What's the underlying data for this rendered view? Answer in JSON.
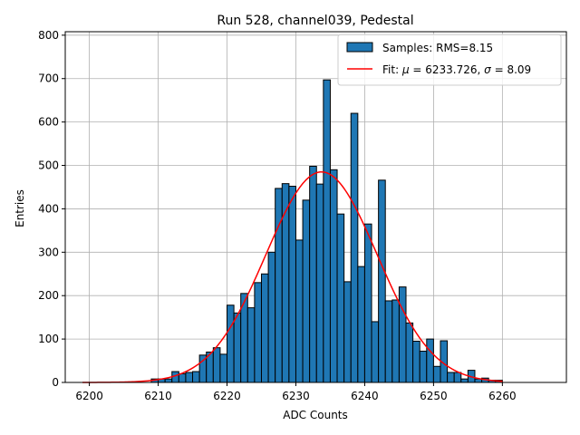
{
  "chart_data": {
    "type": "bar",
    "title": "Run 528, channel039, Pedestal",
    "xlabel": "ADC Counts",
    "ylabel": "Entries",
    "xlim": [
      6196.5,
      6269.3
    ],
    "ylim": [
      0,
      808
    ],
    "xticks": [
      6200,
      6210,
      6220,
      6230,
      6240,
      6250,
      6260
    ],
    "yticks": [
      0,
      100,
      200,
      300,
      400,
      500,
      600,
      700,
      800
    ],
    "grid": true,
    "legend_position": "upper right",
    "bin_width": 1,
    "bin_starts": [
      6209,
      6210,
      6211,
      6212,
      6213,
      6214,
      6215,
      6216,
      6217,
      6218,
      6219,
      6220,
      6221,
      6222,
      6223,
      6224,
      6225,
      6226,
      6227,
      6228,
      6229,
      6230,
      6231,
      6232,
      6233,
      6234,
      6235,
      6236,
      6237,
      6238,
      6239,
      6240,
      6241,
      6242,
      6243,
      6244,
      6245,
      6246,
      6247,
      6248,
      6249,
      6250,
      6251,
      6252,
      6253,
      6254,
      6255,
      6256,
      6257,
      6258,
      6259
    ],
    "series": [
      {
        "name": "Samples: RMS=8.15",
        "kind": "histogram",
        "color": "#1f77b4",
        "edgecolor": "#000000",
        "values": [
          8,
          8,
          8,
          25,
          20,
          23,
          25,
          63,
          70,
          80,
          65,
          178,
          160,
          205,
          172,
          230,
          250,
          300,
          447,
          458,
          452,
          328,
          420,
          498,
          457,
          697,
          490,
          388,
          232,
          620,
          267,
          365,
          140,
          466,
          188,
          190,
          220,
          137,
          95,
          72,
          100,
          37,
          96,
          23,
          23,
          8,
          28,
          8,
          10,
          5,
          5
        ]
      },
      {
        "name": "Fit: μ = 6233.726, σ = 8.09",
        "kind": "line",
        "color": "#ff0000",
        "mu": 6233.726,
        "sigma": 8.09,
        "amplitude": 485,
        "x_range": [
          6199,
          6260
        ]
      }
    ],
    "legend": {
      "samples_label": "Samples: RMS=8.15",
      "fit_prefix": "Fit: ",
      "mu_symbol": "μ",
      "mu_value": " = 6233.726, ",
      "sigma_symbol": "σ",
      "sigma_value": " = 8.09"
    }
  }
}
